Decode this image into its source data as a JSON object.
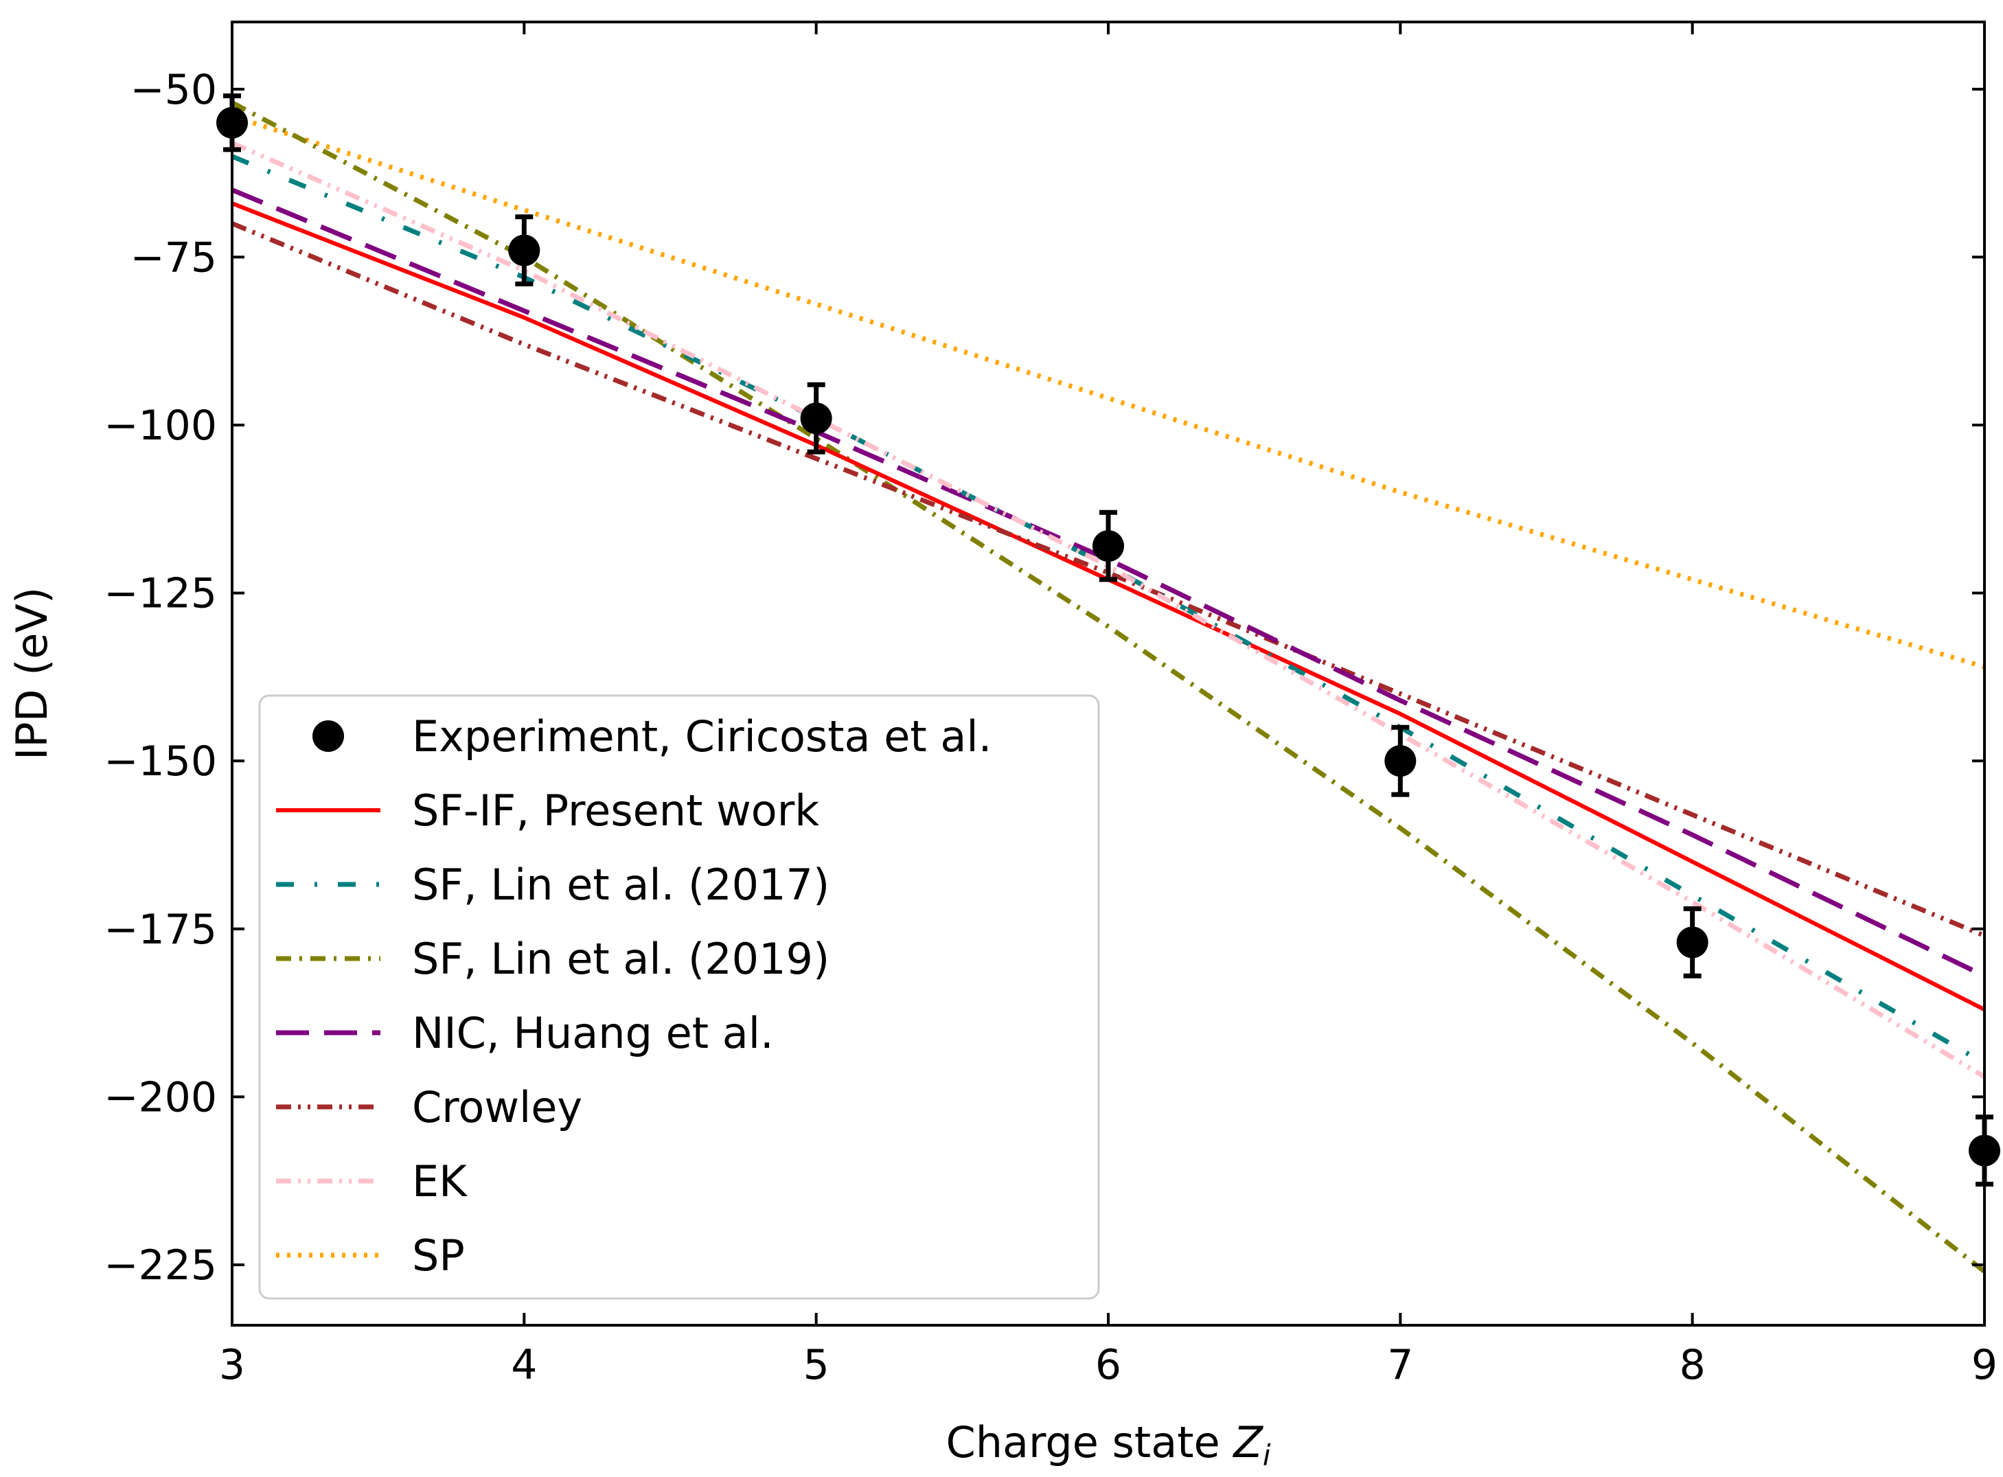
{
  "chart_data": {
    "type": "line",
    "title": "",
    "xlabel_prefix": "Charge state ",
    "xlabel_var": "Z",
    "xlabel_sub": "i",
    "ylabel": "IPD (eV)",
    "xlim": [
      3,
      9
    ],
    "ylim": [
      -234,
      -40
    ],
    "xticks": [
      3,
      4,
      5,
      6,
      7,
      8,
      9
    ],
    "xtick_labels": [
      "3",
      "4",
      "5",
      "6",
      "7",
      "8",
      "9"
    ],
    "yticks": [
      -50,
      -75,
      -100,
      -125,
      -150,
      -175,
      -200,
      -225
    ],
    "ytick_labels": [
      "−50",
      "−75",
      "−100",
      "−125",
      "−150",
      "−175",
      "−200",
      "−225"
    ],
    "legend_position": "lower-left",
    "experiment": {
      "name": "Experiment, Ciricosta et al.",
      "color": "#000000",
      "points": [
        {
          "x": 3,
          "y": -55,
          "err": 4
        },
        {
          "x": 4,
          "y": -74,
          "err": 5
        },
        {
          "x": 5,
          "y": -99,
          "err": 5
        },
        {
          "x": 6,
          "y": -118,
          "err": 5
        },
        {
          "x": 7,
          "y": -150,
          "err": 5
        },
        {
          "x": 8,
          "y": -177,
          "err": 5
        },
        {
          "x": 9,
          "y": -208,
          "err": 5
        }
      ]
    },
    "series": [
      {
        "name": "SF-IF, Present work",
        "color": "#ff0000",
        "style": "solid",
        "x": [
          3,
          4,
          5,
          6,
          7,
          8,
          9
        ],
        "y": [
          -67,
          -84,
          -103,
          -123,
          -143,
          -165,
          -187
        ]
      },
      {
        "name": "SF, Lin et al. (2017)",
        "color": "#008080",
        "style": "dashdot-sparse",
        "x": [
          3,
          4,
          5,
          6,
          7,
          8,
          9
        ],
        "y": [
          -60,
          -78,
          -99,
          -121,
          -145,
          -170,
          -195
        ]
      },
      {
        "name": "SF, Lin et al. (2019)",
        "color": "#808000",
        "style": "dashdot",
        "x": [
          3,
          4,
          5,
          6,
          7,
          8,
          9
        ],
        "y": [
          -52,
          -75,
          -102,
          -130,
          -160,
          -192,
          -226
        ]
      },
      {
        "name": "NIC, Huang et al.",
        "color": "#800080",
        "style": "longdash",
        "x": [
          3,
          4,
          5,
          6,
          7,
          8,
          9
        ],
        "y": [
          -65,
          -83,
          -101,
          -120,
          -141,
          -161,
          -182
        ]
      },
      {
        "name": "Crowley",
        "color": "#a52a2a",
        "style": "dashdotdot",
        "x": [
          3,
          4,
          5,
          6,
          7,
          8,
          9
        ],
        "y": [
          -70,
          -88,
          -105,
          -122,
          -140,
          -158,
          -176
        ]
      },
      {
        "name": "EK",
        "color": "#ffc0cb",
        "style": "dashdotdot",
        "x": [
          3,
          4,
          5,
          6,
          7,
          8,
          9
        ],
        "y": [
          -58,
          -77,
          -99,
          -121,
          -146,
          -171,
          -197
        ]
      },
      {
        "name": "SP",
        "color": "#ffa500",
        "style": "dotted",
        "x": [
          3,
          4,
          5,
          6,
          7,
          8,
          9
        ],
        "y": [
          -54,
          -68,
          -82,
          -96,
          -110,
          -123,
          -136
        ]
      }
    ]
  }
}
